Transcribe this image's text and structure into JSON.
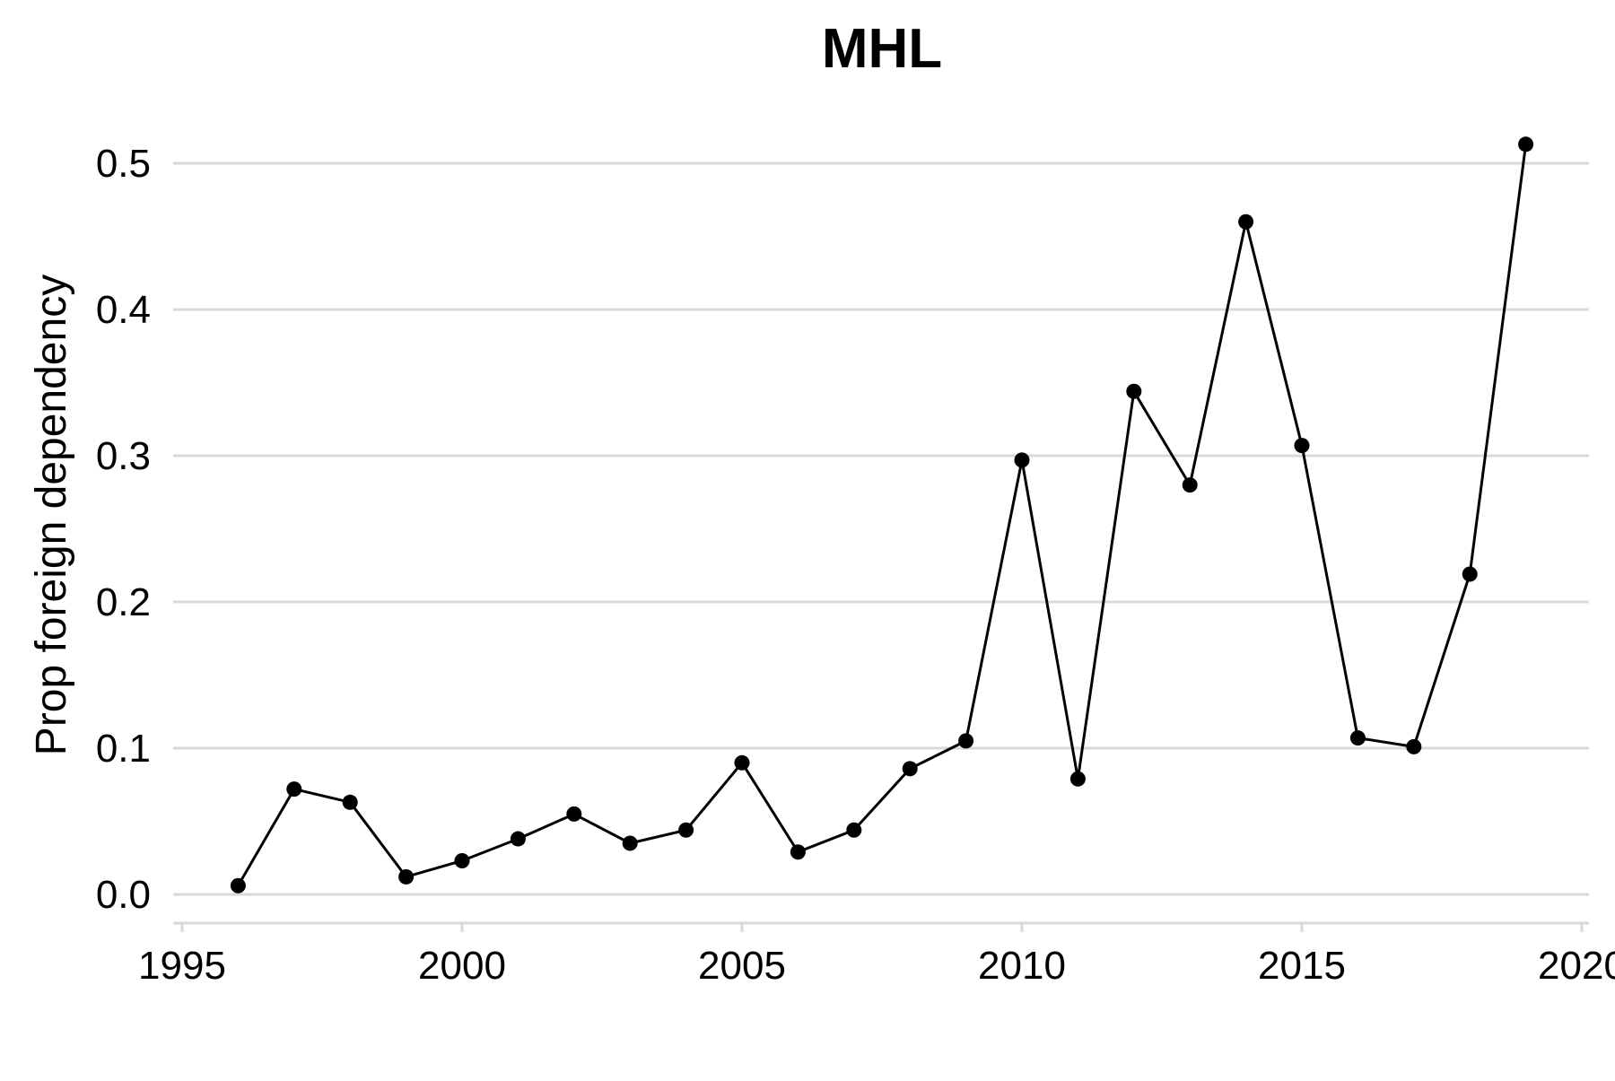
{
  "chart_data": {
    "type": "line",
    "title": "MHL",
    "xlabel": "",
    "ylabel": "Prop foreign dependency",
    "xlim": [
      1995,
      2020
    ],
    "ylim": [
      0,
      0.5
    ],
    "x_ticks": [
      1995,
      2000,
      2005,
      2010,
      2015,
      2020
    ],
    "x_tick_labels": [
      "1995",
      "2000",
      "2005",
      "2010",
      "2015",
      "2020"
    ],
    "y_ticks": [
      0,
      0.1,
      0.2,
      0.3,
      0.4,
      0.5
    ],
    "y_tick_labels": [
      "0.0",
      "0.1",
      "0.2",
      "0.3",
      "0.4",
      "0.5"
    ],
    "grid": "horizontal",
    "colors": {
      "line": "#000000",
      "grid": "#d9d9d9"
    },
    "series": [
      {
        "x": [
          1996,
          1997,
          1998,
          1999,
          2000,
          2001,
          2002,
          2003,
          2004,
          2005,
          2006,
          2007,
          2008,
          2009,
          2010,
          2011,
          2012,
          2013,
          2014,
          2015,
          2016,
          2017,
          2018,
          2019
        ],
        "values": [
          0.006,
          0.072,
          0.063,
          0.012,
          0.023,
          0.038,
          0.055,
          0.035,
          0.044,
          0.09,
          0.029,
          0.044,
          0.086,
          0.105,
          0.297,
          0.079,
          0.344,
          0.28,
          0.46,
          0.307,
          0.107,
          0.101,
          0.219,
          0.513
        ]
      }
    ]
  }
}
